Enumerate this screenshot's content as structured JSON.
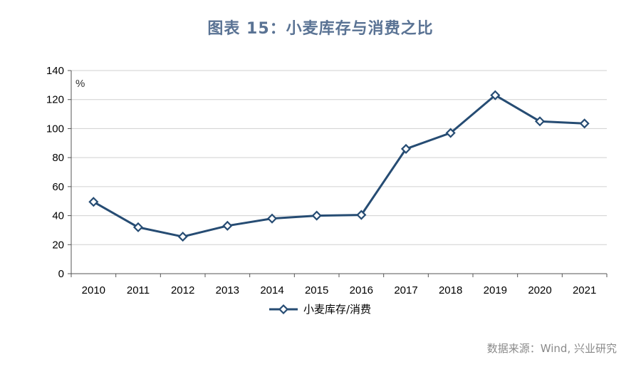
{
  "title": "图表 15：小麦库存与消费之比",
  "source": "数据来源：Wind, 兴业研究",
  "chart_data": {
    "type": "line",
    "title": "图表 15：小麦库存与消费之比",
    "categories": [
      "2010",
      "2011",
      "2012",
      "2013",
      "2014",
      "2015",
      "2016",
      "2017",
      "2018",
      "2019",
      "2020",
      "2021"
    ],
    "series": [
      {
        "name": "小麦库存/消费",
        "values": [
          49.5,
          32,
          25.5,
          33,
          38,
          40,
          40.5,
          86,
          97,
          123,
          105,
          103.5
        ],
        "color": "#264c73",
        "marker": "diamond"
      }
    ],
    "ylim": [
      0,
      140
    ],
    "yticks": [
      0,
      20,
      40,
      60,
      80,
      100,
      120,
      140
    ],
    "yunit": "%",
    "grid": true,
    "legend": "bottom-center"
  }
}
